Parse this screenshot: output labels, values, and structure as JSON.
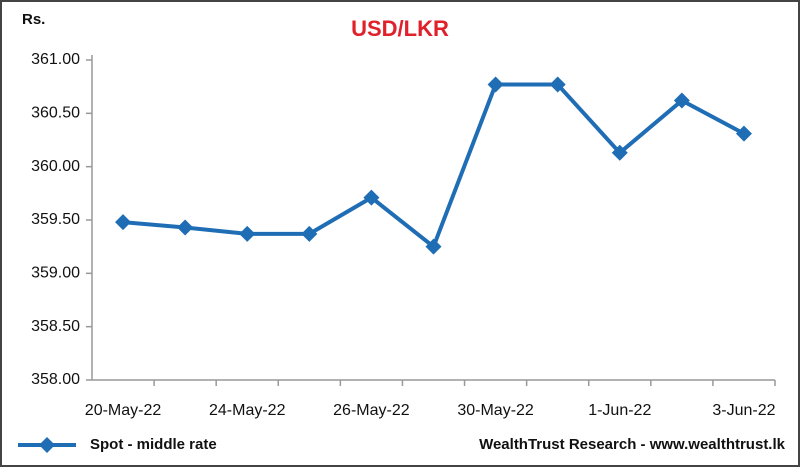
{
  "chart_data": {
    "type": "line",
    "title": "USD/LKR",
    "y_label": "Rs.",
    "categories": [
      "20-May-22",
      null,
      "24-May-22",
      null,
      "26-May-22",
      null,
      "30-May-22",
      null,
      "1-Jun-22",
      null,
      "3-Jun-22"
    ],
    "series": [
      {
        "name": "Spot - middle rate",
        "color": "#1f6db5",
        "values": [
          359.48,
          359.43,
          359.37,
          359.37,
          359.71,
          359.25,
          360.77,
          360.77,
          360.13,
          360.62,
          360.31
        ]
      }
    ],
    "ylim": [
      358,
      361
    ],
    "yticks": [
      {
        "value": 358,
        "label": "358.00"
      },
      {
        "value": 358.5,
        "label": "358.50"
      },
      {
        "value": 359,
        "label": "359.00"
      },
      {
        "value": 359.5,
        "label": "359.50"
      },
      {
        "value": 360,
        "label": "360.00"
      },
      {
        "value": 360.5,
        "label": "360.50"
      },
      {
        "value": 361,
        "label": "361.00"
      }
    ],
    "grid": false,
    "legend": "bottom-left",
    "source": "WealthTrust Research - www.wealthtrust.lk"
  }
}
